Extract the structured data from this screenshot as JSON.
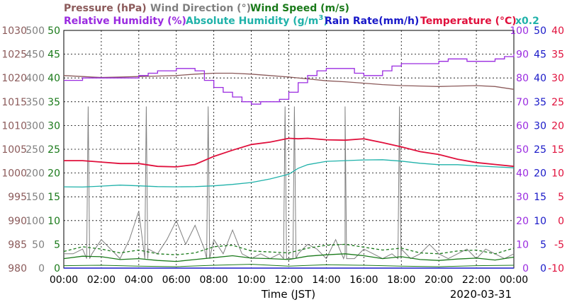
{
  "chart_data": {
    "type": "line",
    "date": "2020-03-31",
    "xlabel": "Time (JST)",
    "x_ticks": [
      "00:00",
      "02:00",
      "04:00",
      "06:00",
      "08:00",
      "10:00",
      "12:00",
      "14:00",
      "16:00",
      "18:00",
      "20:00",
      "22:00",
      "00:00"
    ],
    "grid": true,
    "legend": {
      "pressure": "Pressure (hPa)",
      "wind_direction": "Wind Direction (°)",
      "wind_speed": "Wind Speed (m/s)",
      "relative_humidity": "Relative Humidity (%)",
      "absolute_humidity_prefix": "Absolute Humidity (g/m",
      "absolute_humidity_sup": "3",
      "absolute_humidity_suffix": ")",
      "rain_rate": "Rain Rate(mm/h)",
      "temperature": "Temperature (°C)",
      "abs_scale": "x0.2"
    },
    "axes": {
      "pressure": {
        "min": 980,
        "max": 1030,
        "ticks": [
          "1030",
          "1025",
          "1020",
          "1015",
          "1010",
          "1005",
          "1000",
          "995",
          "990",
          "985",
          "980"
        ]
      },
      "wind_direction": {
        "min": 0,
        "max": 500,
        "ticks": [
          "500",
          "450",
          "400",
          "350",
          "300",
          "250",
          "200",
          "150",
          "100",
          "50",
          "0"
        ]
      },
      "wind_speed": {
        "min": 0,
        "max": 50,
        "ticks": [
          "50",
          "45",
          "40",
          "35",
          "30",
          "25",
          "20",
          "15",
          "10",
          "5",
          "0"
        ]
      },
      "relative_humidity": {
        "min": 0,
        "max": 100,
        "ticks": [
          "100",
          "90",
          "80",
          "70",
          "60",
          "50",
          "40",
          "30",
          "20",
          "10",
          "0"
        ]
      },
      "rain_rate": {
        "min": 0,
        "max": 50,
        "ticks": [
          "50",
          "45",
          "40",
          "35",
          "30",
          "25",
          "20",
          "15",
          "10",
          "5",
          "0"
        ]
      },
      "temperature": {
        "min": -10,
        "max": 40,
        "ticks": [
          "40",
          "35",
          "30",
          "25",
          "20",
          "15",
          "10",
          "5",
          "0",
          "-5",
          "-10"
        ]
      }
    },
    "colors": {
      "pressure": "#8b5a5a",
      "wind_direction": "#808080",
      "wind_speed": "#1a7a1a",
      "relative_humidity": "#9a2be0",
      "absolute_humidity": "#20b2aa",
      "rain_rate": "#1818c8",
      "temperature": "#e0103c"
    },
    "series": [
      {
        "key": "pressure",
        "x": [
          0,
          1,
          2,
          3,
          4,
          5,
          6,
          7,
          8,
          9,
          10,
          11,
          12,
          13,
          14,
          15,
          16,
          17,
          18,
          19,
          20,
          21,
          22,
          23,
          24
        ],
        "values": [
          1020.5,
          1020.3,
          1020.1,
          1020.2,
          1020.3,
          1020.4,
          1020.5,
          1020.8,
          1021,
          1021,
          1020.8,
          1020.5,
          1020.2,
          1019.8,
          1019.4,
          1019.2,
          1018.9,
          1018.6,
          1018.4,
          1018.3,
          1018.2,
          1018.3,
          1018.4,
          1018.2,
          1017.6
        ]
      },
      {
        "key": "relative_humidity",
        "x": [
          0,
          1,
          2,
          3,
          4,
          4.5,
          5,
          6,
          6.5,
          7,
          7.5,
          8,
          8.5,
          9,
          9.5,
          10,
          10.5,
          11,
          11.5,
          12,
          12.5,
          13,
          13.5,
          14,
          14.5,
          15,
          15.5,
          16,
          16.5,
          17,
          17.5,
          18,
          18.5,
          19,
          19.5,
          20,
          20.5,
          21,
          21.5,
          22,
          22.5,
          23,
          23.5,
          24
        ],
        "values": [
          79,
          80,
          80,
          80,
          81,
          82,
          83,
          84,
          84,
          83,
          79,
          76,
          74,
          72,
          70,
          69,
          70,
          70,
          71,
          74,
          78,
          81,
          83,
          84,
          84,
          84,
          82,
          81,
          81,
          83,
          85,
          86,
          86,
          86,
          86,
          87,
          88,
          88,
          87,
          87,
          87,
          88,
          89,
          90
        ]
      },
      {
        "key": "temperature",
        "x": [
          0,
          1,
          2,
          3,
          4,
          5,
          6,
          7,
          8,
          9,
          10,
          11,
          12,
          12.5,
          13,
          14,
          15,
          16,
          17,
          18,
          19,
          20,
          21,
          22,
          23,
          24
        ],
        "values": [
          12.6,
          12.6,
          12.3,
          12.0,
          12.0,
          11.4,
          11.3,
          11.8,
          13.5,
          14.8,
          16.0,
          16.5,
          17.3,
          17.2,
          17.3,
          17.0,
          16.9,
          17.2,
          16.4,
          15.5,
          14.5,
          13.9,
          12.9,
          12.2,
          11.8,
          11.4
        ]
      },
      {
        "key": "absolute_humidity",
        "x": [
          0,
          1,
          2,
          3,
          4,
          5,
          6,
          7,
          8,
          9,
          10,
          11,
          12,
          12.5,
          13,
          14,
          15,
          16,
          17,
          18,
          19,
          20,
          21,
          22,
          23,
          24
        ],
        "values": [
          34.2,
          34.1,
          34.5,
          34.9,
          34.6,
          34.3,
          34.2,
          34.3,
          34.6,
          35.2,
          36.0,
          37.5,
          39.5,
          42,
          43.5,
          44.9,
          45.2,
          45.5,
          45.6,
          45.0,
          44.1,
          43.5,
          43.5,
          43.0,
          42.6,
          42.2
        ]
      },
      {
        "key": "wind_speed",
        "x": [
          0,
          1,
          2,
          3,
          4,
          5,
          6,
          7,
          8,
          9,
          10,
          11,
          12,
          13,
          14,
          15,
          16,
          17,
          18,
          19,
          20,
          21,
          22,
          23,
          24
        ],
        "values": [
          2.0,
          2.5,
          2.4,
          1.8,
          2.0,
          1.6,
          1.4,
          1.8,
          2.2,
          2.6,
          2.1,
          2.0,
          1.8,
          2.5,
          2.8,
          3.0,
          2.6,
          2.0,
          2.4,
          1.8,
          1.6,
          1.9,
          2.1,
          1.7,
          2.3
        ]
      },
      {
        "key": "wind_speed_gust",
        "x": [
          0,
          1,
          2,
          3,
          4,
          5,
          6,
          7,
          8,
          9,
          10,
          11,
          12,
          13,
          14,
          15,
          16,
          17,
          18,
          19,
          20,
          21,
          22,
          23,
          24
        ],
        "values": [
          3.5,
          4.5,
          4.0,
          3.2,
          3.8,
          3.0,
          2.8,
          3.2,
          4.5,
          4.8,
          3.6,
          3.4,
          3.2,
          4.2,
          4.8,
          5.0,
          4.4,
          3.8,
          4.2,
          3.2,
          3.0,
          3.6,
          3.8,
          3.0,
          4.2
        ]
      },
      {
        "key": "wind_speed_min",
        "x": [
          0,
          2,
          4,
          6,
          8,
          10,
          12,
          14,
          16,
          18,
          20,
          22,
          24
        ],
        "values": [
          0.5,
          0.6,
          0.4,
          0.3,
          0.6,
          0.8,
          0.4,
          0.7,
          0.6,
          0.4,
          0.3,
          0.5,
          0.6
        ]
      },
      {
        "key": "rain_rate",
        "x": [
          0,
          24
        ],
        "values": [
          0,
          0
        ]
      }
    ],
    "wind_direction_spikes": [
      {
        "x": 1.3,
        "value": 340
      },
      {
        "x": 4.4,
        "value": 340
      },
      {
        "x": 7.7,
        "value": 340
      },
      {
        "x": 11.8,
        "value": 340
      },
      {
        "x": 12.3,
        "value": 340
      },
      {
        "x": 15.0,
        "value": 340
      },
      {
        "x": 17.9,
        "value": 340
      }
    ],
    "wind_direction_base": [
      30,
      30,
      40,
      30,
      60,
      40,
      20,
      60,
      120,
      40,
      30,
      60,
      100,
      50,
      90,
      40,
      60,
      30,
      80,
      30,
      20,
      30,
      20,
      30,
      20,
      30,
      50,
      40,
      20,
      60,
      30,
      20,
      40,
      30,
      20,
      30,
      40,
      20,
      30,
      50,
      30,
      20,
      30,
      40,
      20,
      40,
      30,
      20,
      30
    ]
  }
}
